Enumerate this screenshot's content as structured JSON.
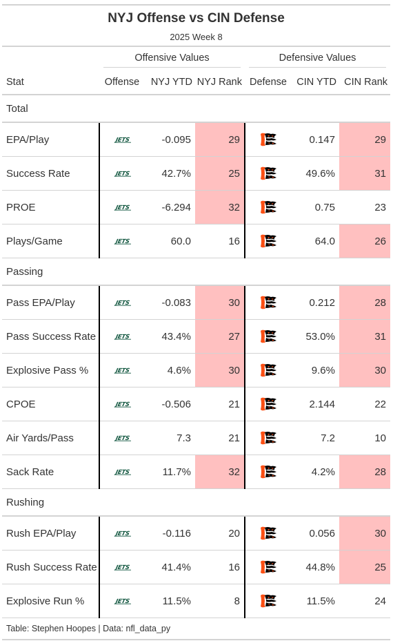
{
  "title": "NYJ Offense vs CIN Defense",
  "subtitle": "2025 Week 8",
  "spanners": {
    "offense": "Offensive Values",
    "defense": "Defensive Values"
  },
  "columns": [
    "Stat",
    "Offense",
    "NYJ YTD",
    "NYJ Rank",
    "Defense",
    "CIN YTD",
    "CIN Rank"
  ],
  "logos": {
    "offense": "jets-logo",
    "defense": "bengals-logo",
    "offense_color": "#125740",
    "defense_color": "#fb4f14"
  },
  "highlight_color": "#ffc0c0",
  "source": "Table: Stephen Hoopes | Data: nfl_data_py",
  "chart_data": {
    "type": "table",
    "groups": [
      {
        "name": "Total",
        "rows": [
          {
            "stat": "EPA/Play",
            "nyj_ytd": "-0.095",
            "nyj_rank": "29",
            "nyj_bad": true,
            "cin_ytd": "0.147",
            "cin_rank": "29",
            "cin_bad": true
          },
          {
            "stat": "Success Rate",
            "nyj_ytd": "42.7%",
            "nyj_rank": "25",
            "nyj_bad": true,
            "cin_ytd": "49.6%",
            "cin_rank": "31",
            "cin_bad": true
          },
          {
            "stat": "PROE",
            "nyj_ytd": "-6.294",
            "nyj_rank": "32",
            "nyj_bad": true,
            "cin_ytd": "0.75",
            "cin_rank": "23",
            "cin_bad": false
          },
          {
            "stat": "Plays/Game",
            "nyj_ytd": "60.0",
            "nyj_rank": "16",
            "nyj_bad": false,
            "cin_ytd": "64.0",
            "cin_rank": "26",
            "cin_bad": true
          }
        ]
      },
      {
        "name": "Passing",
        "rows": [
          {
            "stat": "Pass EPA/Play",
            "nyj_ytd": "-0.083",
            "nyj_rank": "30",
            "nyj_bad": true,
            "cin_ytd": "0.212",
            "cin_rank": "28",
            "cin_bad": true
          },
          {
            "stat": "Pass Success Rate",
            "nyj_ytd": "43.4%",
            "nyj_rank": "27",
            "nyj_bad": true,
            "cin_ytd": "53.0%",
            "cin_rank": "31",
            "cin_bad": true
          },
          {
            "stat": "Explosive Pass %",
            "nyj_ytd": "4.6%",
            "nyj_rank": "30",
            "nyj_bad": true,
            "cin_ytd": "9.6%",
            "cin_rank": "30",
            "cin_bad": true
          },
          {
            "stat": "CPOE",
            "nyj_ytd": "-0.506",
            "nyj_rank": "21",
            "nyj_bad": false,
            "cin_ytd": "2.144",
            "cin_rank": "22",
            "cin_bad": false
          },
          {
            "stat": "Air Yards/Pass",
            "nyj_ytd": "7.3",
            "nyj_rank": "21",
            "nyj_bad": false,
            "cin_ytd": "7.2",
            "cin_rank": "10",
            "cin_bad": false
          },
          {
            "stat": "Sack Rate",
            "nyj_ytd": "11.7%",
            "nyj_rank": "32",
            "nyj_bad": true,
            "cin_ytd": "4.2%",
            "cin_rank": "28",
            "cin_bad": true
          }
        ]
      },
      {
        "name": "Rushing",
        "rows": [
          {
            "stat": "Rush EPA/Play",
            "nyj_ytd": "-0.116",
            "nyj_rank": "20",
            "nyj_bad": false,
            "cin_ytd": "0.056",
            "cin_rank": "30",
            "cin_bad": true
          },
          {
            "stat": "Rush Success Rate",
            "nyj_ytd": "41.4%",
            "nyj_rank": "16",
            "nyj_bad": false,
            "cin_ytd": "44.8%",
            "cin_rank": "25",
            "cin_bad": true
          },
          {
            "stat": "Explosive Run %",
            "nyj_ytd": "11.5%",
            "nyj_rank": "8",
            "nyj_bad": false,
            "cin_ytd": "11.5%",
            "cin_rank": "24",
            "cin_bad": false
          }
        ]
      }
    ]
  }
}
